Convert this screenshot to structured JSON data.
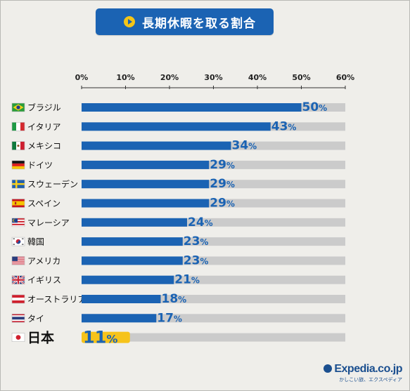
{
  "title": "長期休暇を取る割合",
  "logo": {
    "name": "Expedia.co.jp",
    "tagline": "かしこい旅、エクスペディア"
  },
  "colors": {
    "bar": "#1b63b3",
    "highlight": "#f6c31a",
    "track": "#cbcbcb",
    "label": "#1b63b3",
    "axis": "#333333"
  },
  "chart_data": {
    "type": "bar",
    "orientation": "horizontal",
    "title": "長期休暇を取る割合",
    "xlim": [
      0,
      60
    ],
    "ticks": [
      "0%",
      "10%",
      "20%",
      "30%",
      "40%",
      "50%",
      "60%"
    ],
    "categories": [
      {
        "name": "ブラジル",
        "value": 50,
        "label": "50",
        "flag": "brazil-flag-icon"
      },
      {
        "name": "イタリア",
        "value": 43,
        "label": "43",
        "flag": "italy-flag-icon"
      },
      {
        "name": "メキシコ",
        "value": 34,
        "label": "34",
        "flag": "mexico-flag-icon"
      },
      {
        "name": "ドイツ",
        "value": 29,
        "label": "29",
        "flag": "germany-flag-icon"
      },
      {
        "name": "スウェーデン",
        "value": 29,
        "label": "29",
        "flag": "sweden-flag-icon"
      },
      {
        "name": "スペイン",
        "value": 29,
        "label": "29",
        "flag": "spain-flag-icon"
      },
      {
        "name": "マレーシア",
        "value": 24,
        "label": "24",
        "flag": "malaysia-flag-icon"
      },
      {
        "name": "韓国",
        "value": 23,
        "label": "23",
        "flag": "korea-flag-icon"
      },
      {
        "name": "アメリカ",
        "value": 23,
        "label": "23",
        "flag": "usa-flag-icon"
      },
      {
        "name": "イギリス",
        "value": 21,
        "label": "21",
        "flag": "uk-flag-icon"
      },
      {
        "name": "オーストラリア",
        "value": 18,
        "label": "18",
        "flag": "austria-flag-icon"
      },
      {
        "name": "タイ",
        "value": 17,
        "label": "17",
        "flag": "thailand-flag-icon"
      },
      {
        "name": "日本",
        "value": 11,
        "label": "11",
        "flag": "japan-flag-icon",
        "highlight": true
      }
    ],
    "value_suffix": "%"
  }
}
